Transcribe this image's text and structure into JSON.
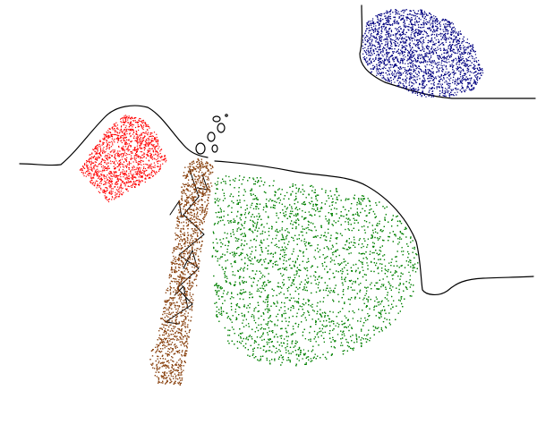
{
  "colors": {
    "background": "#ffffff",
    "outline": "#000000",
    "red_spray": "#ff0000",
    "brown_spray": "#8b4513",
    "green_spray": "#008000",
    "blue_spray": "#000080"
  }
}
